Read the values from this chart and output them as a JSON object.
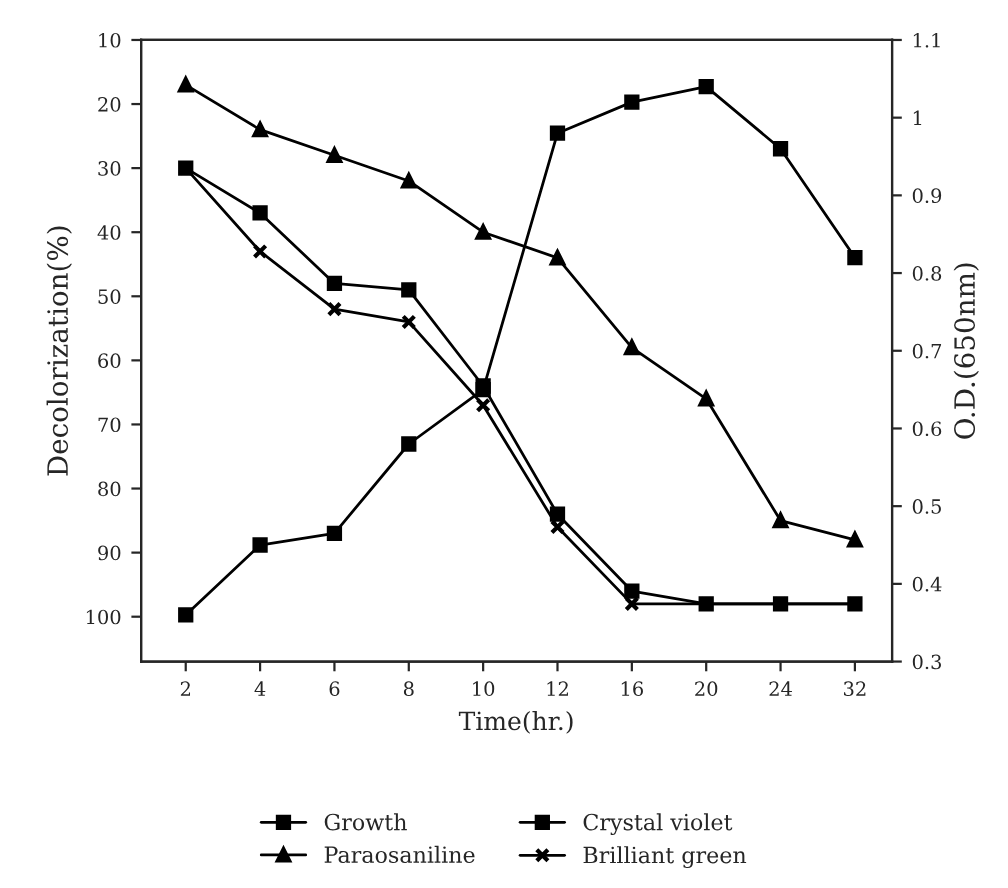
{
  "chart_data": {
    "type": "line",
    "xlabel": "Time(hr.)",
    "ylabel": "Decolorization(%)",
    "y2label": "O.D.(650nm)",
    "categories": [
      "2",
      "4",
      "6",
      "8",
      "10",
      "12",
      "16",
      "20",
      "24",
      "32"
    ],
    "ylim": [
      107,
      10
    ],
    "yticks": [
      10,
      20,
      30,
      40,
      50,
      60,
      70,
      80,
      90,
      100
    ],
    "y2lim": [
      0.3,
      1.1
    ],
    "y2ticks": [
      0.3,
      0.4,
      0.5,
      0.6,
      0.7,
      0.8,
      0.9,
      1,
      1.1
    ],
    "legend": "bottom",
    "grid": false,
    "line_style": "solid",
    "series": [
      {
        "name": "Growth",
        "color": "#000000",
        "marker": "square",
        "axis": "y2",
        "values": [
          0.36,
          0.45,
          0.465,
          0.58,
          0.65,
          0.98,
          1.02,
          1.04,
          0.96,
          0.82
        ]
      },
      {
        "name": "Paraosaniline",
        "color": "#000000",
        "marker": "triangle",
        "values": [
          17,
          24,
          28,
          32,
          40,
          44,
          58,
          66,
          85,
          88
        ]
      },
      {
        "name": "Crystal violet",
        "color": "#000000",
        "marker": "square",
        "values": [
          30,
          37,
          48,
          49,
          64,
          84,
          96,
          98,
          98,
          98
        ]
      },
      {
        "name": "Brilliant green",
        "color": "#000000",
        "marker": "cross",
        "values": [
          30,
          43,
          52,
          54,
          67,
          86,
          98,
          98,
          98,
          98
        ]
      }
    ]
  }
}
